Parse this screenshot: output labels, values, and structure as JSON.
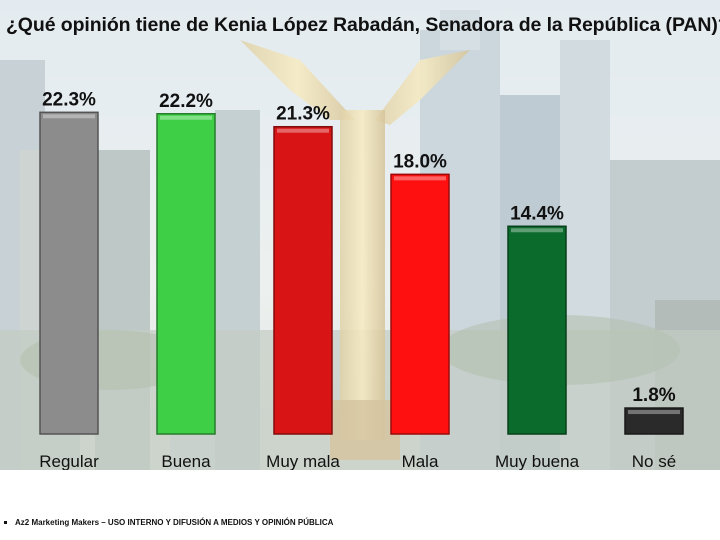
{
  "title": "¿Qué opinión tiene de Kenia López Rabadán, Senadora de la República (PAN)?",
  "footer": "Az2 Marketing Makers – USO INTERNO Y DIFUSIÓN A MEDIOS Y OPINIÓN PÚBLICA",
  "chart_data": {
    "type": "bar",
    "title": "¿Qué opinión tiene de Kenia López Rabadán, Senadora de la República (PAN)?",
    "categories": [
      "Regular",
      "Buena",
      "Muy mala",
      "Mala",
      "Muy buena",
      "No sé"
    ],
    "values": [
      22.3,
      22.2,
      21.3,
      18.0,
      14.4,
      1.8
    ],
    "data_labels": [
      "22.3%",
      "22.2%",
      "21.3%",
      "18.0%",
      "14.4%",
      "1.8%"
    ],
    "colors": [
      "#8c8c8c",
      "#3fcf47",
      "#d81414",
      "#ff1010",
      "#0b6b2c",
      "#2a2a2a"
    ],
    "ylim": [
      0,
      23.5
    ],
    "grid": false,
    "legend": "none"
  }
}
